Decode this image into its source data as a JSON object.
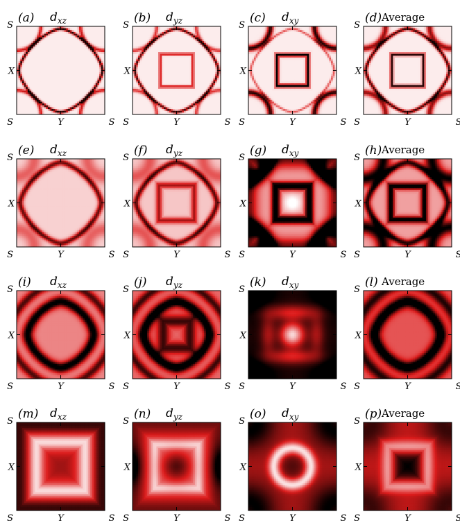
{
  "chart_data": {
    "type": "heatmap",
    "grid": {
      "rows": 4,
      "cols": 4
    },
    "colormap": {
      "low": "#ffffff",
      "mid": "#dd1c1c",
      "high": "#000000"
    },
    "axis_labels": {
      "left_top": "S",
      "left_mid": "X",
      "left_bottom": "S",
      "bottom_mid": "Y",
      "bottom_right": "S"
    },
    "panels": [
      {
        "letter": "(a)",
        "orbital": "d",
        "sub": "xz",
        "avg": false,
        "pattern": "sharp-diamond"
      },
      {
        "letter": "(b)",
        "orbital": "d",
        "sub": "yz",
        "avg": false,
        "pattern": "sharp-diamond-square"
      },
      {
        "letter": "(c)",
        "orbital": "d",
        "sub": "xy",
        "avg": false,
        "pattern": "sharp-square-corners"
      },
      {
        "letter": "(d)",
        "orbital": "",
        "sub": "",
        "avg": true,
        "label": "Average",
        "pattern": "sharp-average"
      },
      {
        "letter": "(e)",
        "orbital": "d",
        "sub": "xz",
        "avg": false,
        "pattern": "soft-diamond"
      },
      {
        "letter": "(f)",
        "orbital": "d",
        "sub": "yz",
        "avg": false,
        "pattern": "soft-diamond-square"
      },
      {
        "letter": "(g)",
        "orbital": "d",
        "sub": "xy",
        "avg": false,
        "pattern": "dark-square-corners"
      },
      {
        "letter": "(h)",
        "orbital": "",
        "sub": "",
        "avg": true,
        "label": "Average",
        "pattern": "soft-average"
      },
      {
        "letter": "(i)",
        "orbital": "d",
        "sub": "xz",
        "avg": false,
        "pattern": "broad-ring"
      },
      {
        "letter": "(j)",
        "orbital": "d",
        "sub": "yz",
        "avg": false,
        "pattern": "broad-ring-dark"
      },
      {
        "letter": "(k)",
        "orbital": "d",
        "sub": "xy",
        "avg": false,
        "pattern": "center-bright"
      },
      {
        "letter": "(l)",
        "orbital": "",
        "sub": "",
        "avg": true,
        "label": "Average",
        "pattern": "broad-average"
      },
      {
        "letter": "(m)",
        "orbital": "d",
        "sub": "xz",
        "avg": false,
        "pattern": "smooth-square"
      },
      {
        "letter": "(n)",
        "orbital": "d",
        "sub": "yz",
        "avg": false,
        "pattern": "smooth-cross"
      },
      {
        "letter": "(o)",
        "orbital": "d",
        "sub": "xy",
        "avg": false,
        "pattern": "smooth-ring"
      },
      {
        "letter": "(p)",
        "orbital": "",
        "sub": "",
        "avg": true,
        "label": "Average",
        "pattern": "smooth-average"
      }
    ]
  }
}
